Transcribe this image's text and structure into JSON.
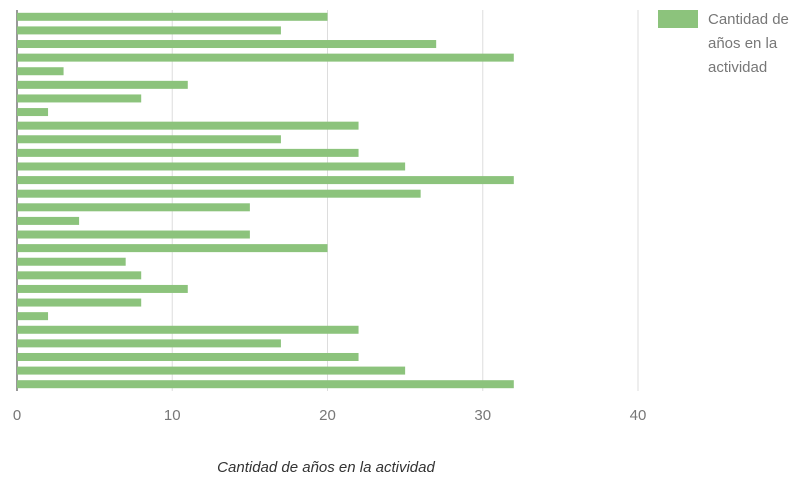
{
  "chart_data": {
    "type": "bar",
    "orientation": "horizontal",
    "x_label": "Cantidad de años en la actividad",
    "categories": [
      null,
      null,
      null,
      null,
      null,
      null,
      null,
      null,
      null,
      null,
      null,
      null,
      null,
      null,
      null,
      null,
      null,
      null,
      null,
      null,
      null,
      null,
      null,
      null,
      null,
      null,
      null,
      null
    ],
    "series": [
      {
        "name": "Cantidad de años en la actividad",
        "color": "#8cc37c",
        "values": [
          20,
          17,
          27,
          32,
          3,
          11,
          8,
          2,
          22,
          17,
          22,
          25,
          32,
          26,
          15,
          4,
          15,
          20,
          7,
          8,
          11,
          8,
          2,
          22,
          17,
          22,
          25,
          32
        ]
      }
    ],
    "xlim": [
      0,
      40
    ],
    "xticks": [
      0,
      10,
      20,
      30,
      40
    ],
    "grid": true,
    "legend": "right"
  }
}
